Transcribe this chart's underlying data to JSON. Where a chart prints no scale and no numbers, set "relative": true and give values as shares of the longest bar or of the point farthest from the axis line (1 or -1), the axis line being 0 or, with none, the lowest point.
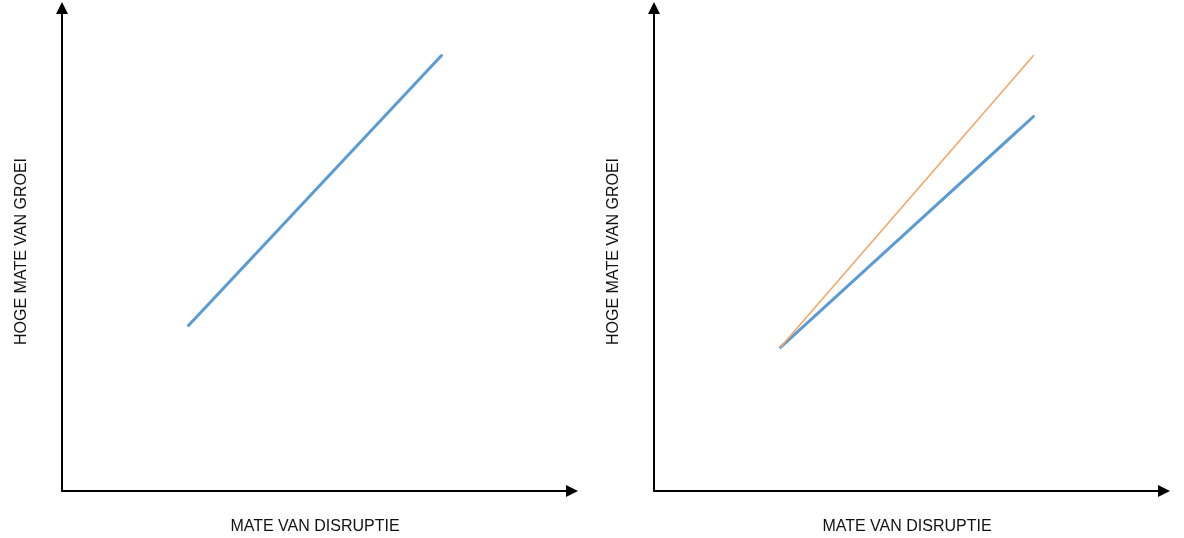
{
  "chart_data": [
    {
      "type": "line",
      "relative": true,
      "xlabel": "MATE VAN DISRUPTIE",
      "ylabel": "HOGE MATE VAN GROEI",
      "categories": [
        null,
        null
      ],
      "grid": false,
      "marker": "none",
      "series": [
        {
          "color": "#5b9bd5",
          "values": [
            0.38,
            1
          ]
        }
      ]
    },
    {
      "type": "line",
      "relative": true,
      "xlabel": "MATE VAN DISRUPTIE",
      "ylabel": "HOGE MATE VAN GROEI",
      "categories": [
        null,
        null
      ],
      "grid": false,
      "marker": "none",
      "series": [
        {
          "color": "#5b9bd5",
          "values": [
            0.33,
            0.86
          ]
        },
        {
          "color": "#f4a460",
          "values": [
            0.33,
            1
          ]
        }
      ]
    }
  ]
}
